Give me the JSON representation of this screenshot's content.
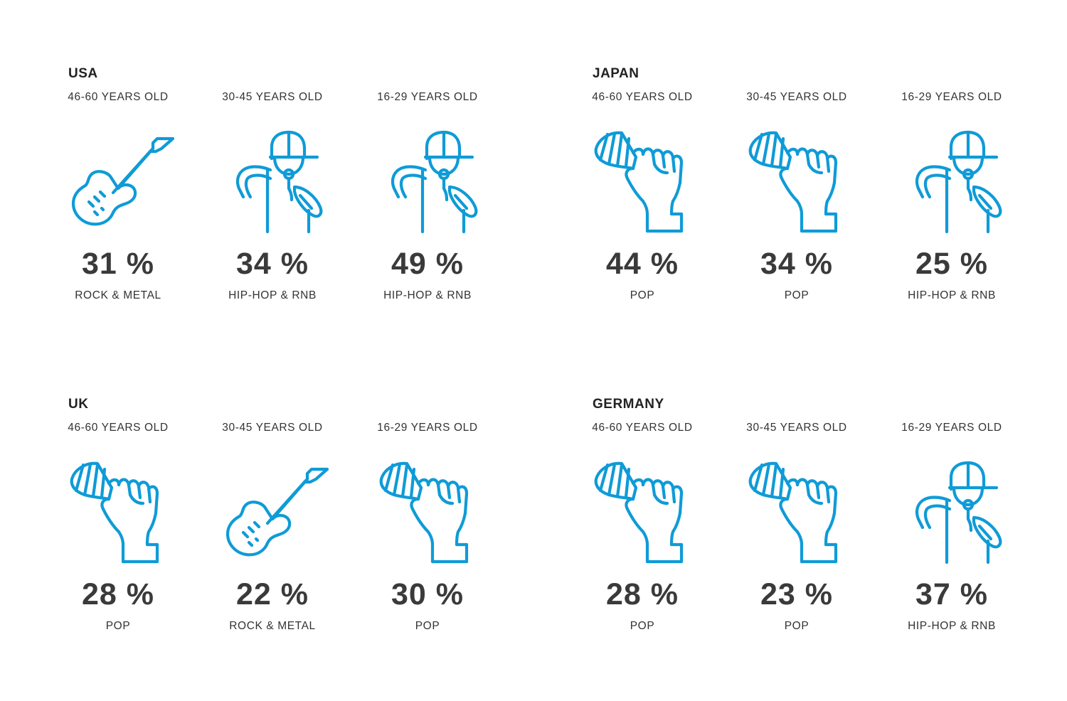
{
  "accent_color": "#0f9bd7",
  "panels": [
    {
      "country": "USA",
      "groups": [
        {
          "age": "46-60 YEARS OLD",
          "icon": "guitar-icon",
          "percent": "31 %",
          "genre": "ROCK & METAL"
        },
        {
          "age": "30-45 YEARS OLD",
          "icon": "rapper-icon",
          "percent": "34 %",
          "genre": "HIP-HOP & RNB"
        },
        {
          "age": "16-29 YEARS OLD",
          "icon": "rapper-icon",
          "percent": "49 %",
          "genre": "HIP-HOP & RNB"
        }
      ]
    },
    {
      "country": "JAPAN",
      "groups": [
        {
          "age": "46-60 YEARS OLD",
          "icon": "microphone-fist-icon",
          "percent": "44 %",
          "genre": "POP"
        },
        {
          "age": "30-45 YEARS OLD",
          "icon": "microphone-fist-icon",
          "percent": "34 %",
          "genre": "POP"
        },
        {
          "age": "16-29 YEARS OLD",
          "icon": "rapper-icon",
          "percent": "25 %",
          "genre": "HIP-HOP & RNB"
        }
      ]
    },
    {
      "country": "UK",
      "groups": [
        {
          "age": "46-60 YEARS OLD",
          "icon": "microphone-fist-icon",
          "percent": "28 %",
          "genre": "POP"
        },
        {
          "age": "30-45 YEARS OLD",
          "icon": "guitar-icon",
          "percent": "22 %",
          "genre": "ROCK & METAL"
        },
        {
          "age": "16-29 YEARS OLD",
          "icon": "microphone-fist-icon",
          "percent": "30 %",
          "genre": "POP"
        }
      ]
    },
    {
      "country": "GERMANY",
      "groups": [
        {
          "age": "46-60 YEARS OLD",
          "icon": "microphone-fist-icon",
          "percent": "28 %",
          "genre": "POP"
        },
        {
          "age": "30-45 YEARS OLD",
          "icon": "microphone-fist-icon",
          "percent": "23 %",
          "genre": "POP"
        },
        {
          "age": "16-29 YEARS OLD",
          "icon": "rapper-icon",
          "percent": "37 %",
          "genre": "HIP-HOP & RNB"
        }
      ]
    }
  ]
}
